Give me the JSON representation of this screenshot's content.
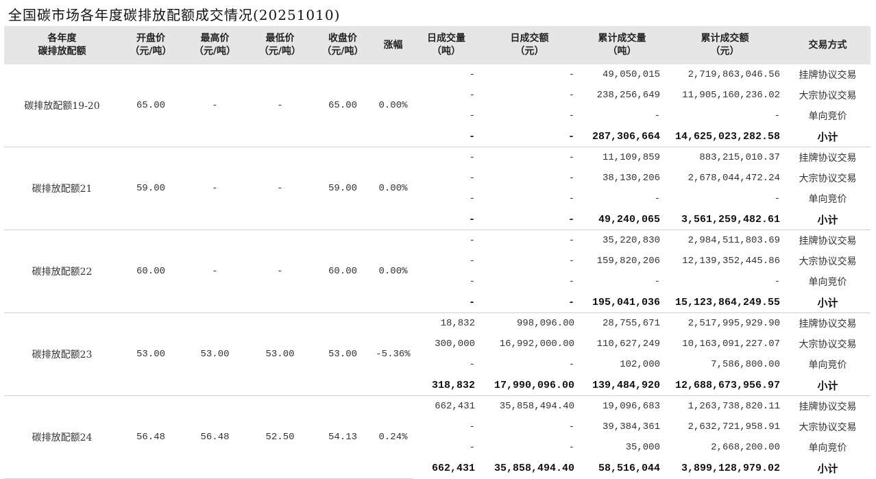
{
  "title": "全国碳市场各年度碳排放配额成交情况(20251010)",
  "headers": [
    [
      "各年度",
      "碳排放配额"
    ],
    [
      "开盘价",
      "（元/吨）"
    ],
    [
      "最高价",
      "（元/吨）"
    ],
    [
      "最低价",
      "（元/吨）"
    ],
    [
      "收盘价",
      "（元/吨）"
    ],
    [
      "涨幅",
      ""
    ],
    [
      "日成交量",
      "（吨）"
    ],
    [
      "日成交额",
      "（元）"
    ],
    [
      "累计成交量",
      "（吨）"
    ],
    [
      "累计成交额",
      "（元）"
    ],
    [
      "交易方式",
      ""
    ]
  ],
  "groups": [
    {
      "name": "碳排放配额19-20",
      "open": "65.00",
      "high": "-",
      "low": "-",
      "close": "65.00",
      "change": "0.00%",
      "rows": [
        {
          "daily_vol": "-",
          "daily_amt": "-",
          "cum_vol": "49,050,015",
          "cum_amt": "2,719,863,046.56",
          "method": "挂牌协议交易"
        },
        {
          "daily_vol": "-",
          "daily_amt": "-",
          "cum_vol": "238,256,649",
          "cum_amt": "11,905,160,236.02",
          "method": "大宗协议交易"
        },
        {
          "daily_vol": "-",
          "daily_amt": "-",
          "cum_vol": "-",
          "cum_amt": "-",
          "method": "单向竞价"
        },
        {
          "daily_vol": "-",
          "daily_amt": "-",
          "cum_vol": "287,306,664",
          "cum_amt": "14,625,023,282.58",
          "method": "小计"
        }
      ]
    },
    {
      "name": "碳排放配额21",
      "open": "59.00",
      "high": "-",
      "low": "-",
      "close": "59.00",
      "change": "0.00%",
      "rows": [
        {
          "daily_vol": "-",
          "daily_amt": "-",
          "cum_vol": "11,109,859",
          "cum_amt": "883,215,010.37",
          "method": "挂牌协议交易"
        },
        {
          "daily_vol": "-",
          "daily_amt": "-",
          "cum_vol": "38,130,206",
          "cum_amt": "2,678,044,472.24",
          "method": "大宗协议交易"
        },
        {
          "daily_vol": "-",
          "daily_amt": "-",
          "cum_vol": "-",
          "cum_amt": "-",
          "method": "单向竞价"
        },
        {
          "daily_vol": "-",
          "daily_amt": "-",
          "cum_vol": "49,240,065",
          "cum_amt": "3,561,259,482.61",
          "method": "小计"
        }
      ]
    },
    {
      "name": "碳排放配额22",
      "open": "60.00",
      "high": "-",
      "low": "-",
      "close": "60.00",
      "change": "0.00%",
      "rows": [
        {
          "daily_vol": "-",
          "daily_amt": "-",
          "cum_vol": "35,220,830",
          "cum_amt": "2,984,511,803.69",
          "method": "挂牌协议交易"
        },
        {
          "daily_vol": "-",
          "daily_amt": "-",
          "cum_vol": "159,820,206",
          "cum_amt": "12,139,352,445.86",
          "method": "大宗协议交易"
        },
        {
          "daily_vol": "-",
          "daily_amt": "-",
          "cum_vol": "-",
          "cum_amt": "-",
          "method": "单向竞价"
        },
        {
          "daily_vol": "-",
          "daily_amt": "-",
          "cum_vol": "195,041,036",
          "cum_amt": "15,123,864,249.55",
          "method": "小计"
        }
      ]
    },
    {
      "name": "碳排放配额23",
      "open": "53.00",
      "high": "53.00",
      "low": "53.00",
      "close": "53.00",
      "change": "-5.36%",
      "rows": [
        {
          "daily_vol": "18,832",
          "daily_amt": "998,096.00",
          "cum_vol": "28,755,671",
          "cum_amt": "2,517,995,929.90",
          "method": "挂牌协议交易"
        },
        {
          "daily_vol": "300,000",
          "daily_amt": "16,992,000.00",
          "cum_vol": "110,627,249",
          "cum_amt": "10,163,091,227.07",
          "method": "大宗协议交易"
        },
        {
          "daily_vol": "-",
          "daily_amt": "-",
          "cum_vol": "102,000",
          "cum_amt": "7,586,800.00",
          "method": "单向竞价"
        },
        {
          "daily_vol": "318,832",
          "daily_amt": "17,990,096.00",
          "cum_vol": "139,484,920",
          "cum_amt": "12,688,673,956.97",
          "method": "小计"
        }
      ]
    },
    {
      "name": "碳排放配额24",
      "open": "56.48",
      "high": "56.48",
      "low": "52.50",
      "close": "54.13",
      "change": "0.24%",
      "rows": [
        {
          "daily_vol": "662,431",
          "daily_amt": "35,858,494.40",
          "cum_vol": "19,096,683",
          "cum_amt": "1,263,738,820.11",
          "method": "挂牌协议交易"
        },
        {
          "daily_vol": "-",
          "daily_amt": "-",
          "cum_vol": "39,384,361",
          "cum_amt": "2,632,721,958.91",
          "method": "大宗协议交易"
        },
        {
          "daily_vol": "-",
          "daily_amt": "-",
          "cum_vol": "35,000",
          "cum_amt": "2,668,200.00",
          "method": "单向竞价"
        },
        {
          "daily_vol": "662,431",
          "daily_amt": "35,858,494.40",
          "cum_vol": "58,516,044",
          "cum_amt": "3,899,128,979.02",
          "method": "小计"
        }
      ]
    }
  ]
}
